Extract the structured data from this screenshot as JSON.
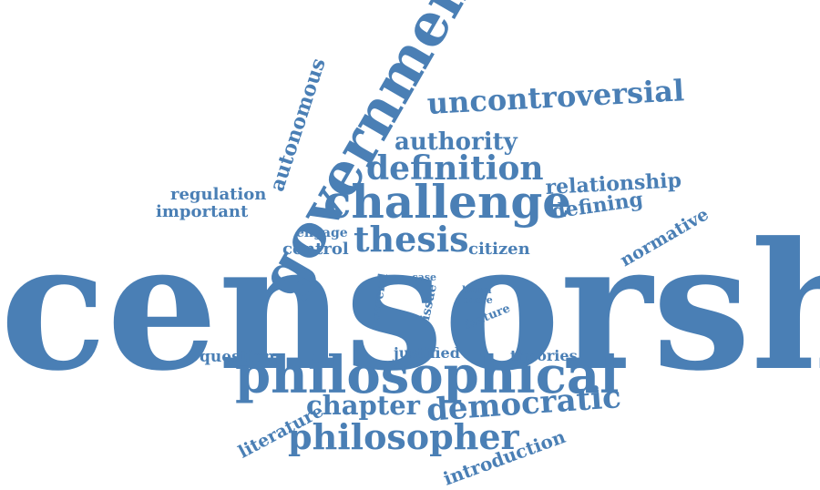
{
  "word_color": "#4a7fb5",
  "background": "#ffffff",
  "words": {
    "censorship": "censorship",
    "government": "government",
    "philosophical": "philosophical",
    "challenge": "challenge",
    "thesis": "thesis",
    "definition": "definition",
    "uncontroversial": "uncontroversial",
    "authority": "authority",
    "democratic": "democratic",
    "philosopher": "philosopher",
    "chapter": "chapter",
    "relationship": "relationship",
    "defining": "defining",
    "autonomous": "autonomous",
    "regulation": "regulation",
    "important": "important",
    "engage": "engage",
    "control": "control",
    "citizen": "citizen",
    "normative": "normative",
    "question": "question",
    "justified": "justified",
    "theories": "theories",
    "literature": "literature",
    "introduction": "introduction",
    "several": "several",
    "case": "case",
    "issue": "issue",
    "harm": "harm",
    "more": "more",
    "feature": "feature"
  }
}
